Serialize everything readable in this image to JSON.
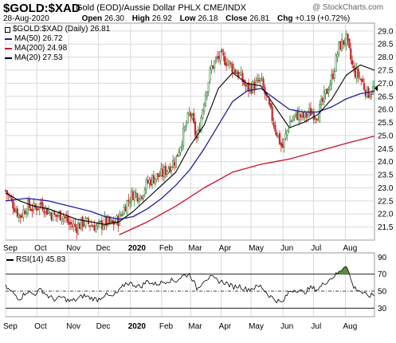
{
  "header": {
    "symbol": "$GOLD:$XAD",
    "description": "Gold (EOD)/Aussie Dollar PHLX  CME/INDX",
    "watermark": "@ StockCharts.com",
    "date": "28-Aug-2020",
    "open_label": "Open",
    "open": "26.30",
    "high_label": "High",
    "high": "26.92",
    "low_label": "Low",
    "low": "26.18",
    "close_label": "Close",
    "close": "26.81",
    "chg_label": "Chg",
    "chg": "+0.19 (+0.72%)"
  },
  "legend": [
    {
      "text": "$GOLD:$XAD (Daily) 26.81",
      "color": "#000000",
      "type": "box"
    },
    {
      "text": "MA(50) 26.72",
      "color": "#1f1f9a",
      "type": "line"
    },
    {
      "text": "MA(200) 24.98",
      "color": "#c8102e",
      "type": "line"
    },
    {
      "text": "MA(20) 27.53",
      "color": "#000000",
      "type": "line"
    }
  ],
  "rsi_label": "RSI(14) 45.83",
  "colors": {
    "up": "#2e7d32",
    "down": "#c62828",
    "ma50": "#1f1f9a",
    "ma200": "#c8102e",
    "ma20": "#000000",
    "grid": "#d9d9d9",
    "rsi_fill": "#5a8f3a"
  },
  "chart_data": [
    {
      "type": "candlestick",
      "title": "$GOLD:$XAD",
      "y_ticks": [
        "21.5",
        "22.0",
        "22.5",
        "23.0",
        "23.5",
        "24.0",
        "24.5",
        "25.0",
        "25.5",
        "26.0",
        "26.5",
        "27.0",
        "27.5",
        "28.0",
        "28.5",
        "29.0"
      ],
      "ylim": [
        21.0,
        29.3
      ],
      "x_labels": [
        "Sep",
        "Oct",
        "Nov",
        "Dec",
        "2020",
        "Feb",
        "Mar",
        "Apr",
        "May",
        "Jun",
        "Jul",
        "Aug"
      ],
      "x_label_weeks": [
        0,
        4.4,
        8.9,
        13.1,
        17.6,
        22.0,
        26.1,
        30.4,
        34.6,
        39.1,
        43.4,
        47.9
      ],
      "total_weeks": 52,
      "close_path": [
        [
          0,
          22.9
        ],
        [
          1,
          22.4
        ],
        [
          2,
          21.9
        ],
        [
          3,
          22.3
        ],
        [
          4,
          22.2
        ],
        [
          5,
          22.4
        ],
        [
          6,
          22.1
        ],
        [
          7,
          21.9
        ],
        [
          8,
          22.0
        ],
        [
          9,
          21.6
        ],
        [
          10,
          21.5
        ],
        [
          11,
          21.7
        ],
        [
          12,
          21.6
        ],
        [
          13,
          21.5
        ],
        [
          14,
          21.7
        ],
        [
          15,
          21.6
        ],
        [
          16,
          21.8
        ],
        [
          17,
          22.4
        ],
        [
          18,
          22.8
        ],
        [
          19,
          22.7
        ],
        [
          20,
          23.2
        ],
        [
          21,
          23.4
        ],
        [
          22,
          23.5
        ],
        [
          23,
          23.8
        ],
        [
          24,
          24.1
        ],
        [
          25,
          25.0
        ],
        [
          26,
          25.9
        ],
        [
          27,
          24.8
        ],
        [
          28,
          26.4
        ],
        [
          29,
          27.6
        ],
        [
          30,
          28.0
        ],
        [
          31,
          27.9
        ],
        [
          32,
          27.6
        ],
        [
          33,
          27.3
        ],
        [
          34,
          26.8
        ],
        [
          35,
          26.9
        ],
        [
          36,
          27.1
        ],
        [
          37,
          26.2
        ],
        [
          38,
          25.3
        ],
        [
          39,
          24.5
        ],
        [
          40,
          25.5
        ],
        [
          41,
          25.8
        ],
        [
          42,
          25.7
        ],
        [
          43,
          25.9
        ],
        [
          44,
          25.8
        ],
        [
          45,
          26.5
        ],
        [
          46,
          27.2
        ],
        [
          47,
          28.4
        ],
        [
          48,
          28.7
        ],
        [
          49,
          27.5
        ],
        [
          50,
          27.2
        ],
        [
          51,
          26.6
        ],
        [
          52,
          26.8
        ]
      ],
      "ma20": [
        [
          0,
          22.8
        ],
        [
          2,
          22.5
        ],
        [
          4,
          22.3
        ],
        [
          6,
          22.2
        ],
        [
          8,
          22.0
        ],
        [
          10,
          21.8
        ],
        [
          12,
          21.7
        ],
        [
          14,
          21.6
        ],
        [
          16,
          21.7
        ],
        [
          18,
          22.1
        ],
        [
          20,
          22.6
        ],
        [
          22,
          23.1
        ],
        [
          24,
          23.6
        ],
        [
          26,
          24.6
        ],
        [
          28,
          25.4
        ],
        [
          30,
          26.8
        ],
        [
          32,
          27.4
        ],
        [
          34,
          27.0
        ],
        [
          36,
          26.9
        ],
        [
          38,
          26.1
        ],
        [
          40,
          25.3
        ],
        [
          42,
          25.5
        ],
        [
          44,
          25.8
        ],
        [
          46,
          26.4
        ],
        [
          48,
          27.3
        ],
        [
          50,
          27.7
        ],
        [
          52,
          27.5
        ]
      ],
      "ma50": [
        [
          0,
          22.5
        ],
        [
          3,
          22.6
        ],
        [
          6,
          22.5
        ],
        [
          9,
          22.3
        ],
        [
          12,
          22.1
        ],
        [
          14,
          21.9
        ],
        [
          16,
          21.8
        ],
        [
          18,
          21.9
        ],
        [
          20,
          22.2
        ],
        [
          22,
          22.6
        ],
        [
          24,
          23.1
        ],
        [
          26,
          23.7
        ],
        [
          28,
          24.5
        ],
        [
          30,
          25.4
        ],
        [
          32,
          26.3
        ],
        [
          34,
          26.7
        ],
        [
          36,
          26.8
        ],
        [
          38,
          26.4
        ],
        [
          40,
          26.0
        ],
        [
          42,
          25.9
        ],
        [
          44,
          25.9
        ],
        [
          46,
          26.1
        ],
        [
          48,
          26.4
        ],
        [
          50,
          26.6
        ],
        [
          52,
          26.7
        ]
      ],
      "ma200": [
        [
          16,
          21.2
        ],
        [
          20,
          21.7
        ],
        [
          24,
          22.3
        ],
        [
          28,
          23.0
        ],
        [
          32,
          23.6
        ],
        [
          36,
          23.9
        ],
        [
          38,
          24.0
        ],
        [
          40,
          24.1
        ],
        [
          44,
          24.4
        ],
        [
          48,
          24.7
        ],
        [
          52,
          24.98
        ]
      ],
      "last_price": 26.81,
      "legend_position": "top-left"
    },
    {
      "type": "line",
      "title": "RSI(14)",
      "y_ticks": [
        "30",
        "50",
        "70",
        "90"
      ],
      "ylim": [
        20,
        95
      ],
      "reference_lines": [
        30,
        50,
        70
      ],
      "values": [
        [
          0,
          55
        ],
        [
          1,
          48
        ],
        [
          2,
          41
        ],
        [
          3,
          50
        ],
        [
          4,
          46
        ],
        [
          5,
          52
        ],
        [
          6,
          44
        ],
        [
          7,
          40
        ],
        [
          8,
          43
        ],
        [
          9,
          38
        ],
        [
          10,
          40
        ],
        [
          11,
          45
        ],
        [
          12,
          42
        ],
        [
          13,
          40
        ],
        [
          14,
          46
        ],
        [
          15,
          43
        ],
        [
          16,
          50
        ],
        [
          17,
          60
        ],
        [
          18,
          58
        ],
        [
          19,
          55
        ],
        [
          20,
          62
        ],
        [
          21,
          58
        ],
        [
          22,
          60
        ],
        [
          23,
          63
        ],
        [
          24,
          62
        ],
        [
          25,
          68
        ],
        [
          26,
          70
        ],
        [
          27,
          52
        ],
        [
          28,
          64
        ],
        [
          29,
          66
        ],
        [
          30,
          62
        ],
        [
          31,
          60
        ],
        [
          32,
          55
        ],
        [
          33,
          56
        ],
        [
          34,
          52
        ],
        [
          35,
          54
        ],
        [
          36,
          56
        ],
        [
          37,
          46
        ],
        [
          38,
          40
        ],
        [
          39,
          36
        ],
        [
          40,
          50
        ],
        [
          41,
          52
        ],
        [
          42,
          48
        ],
        [
          43,
          54
        ],
        [
          44,
          52
        ],
        [
          45,
          60
        ],
        [
          46,
          66
        ],
        [
          47,
          72
        ],
        [
          48,
          82
        ],
        [
          49,
          55
        ],
        [
          50,
          50
        ],
        [
          51,
          44
        ],
        [
          52,
          45.83
        ]
      ]
    }
  ]
}
